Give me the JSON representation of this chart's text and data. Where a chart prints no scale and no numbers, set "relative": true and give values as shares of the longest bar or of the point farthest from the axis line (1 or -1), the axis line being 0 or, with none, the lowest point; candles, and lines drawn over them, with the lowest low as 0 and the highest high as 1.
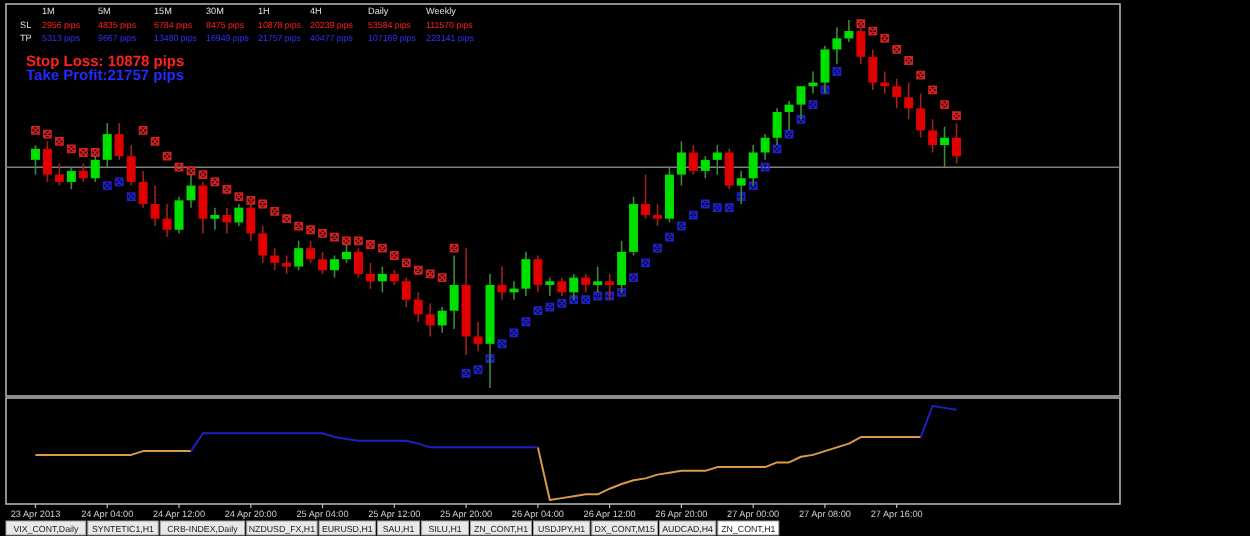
{
  "chart_data": [
    {
      "type": "candlestick",
      "relative": true,
      "tick_labels": false,
      "categories": [
        null,
        null,
        null,
        null,
        null,
        null,
        null,
        null,
        null,
        null,
        null,
        null,
        null,
        null,
        null,
        null,
        null,
        null,
        null,
        null,
        null,
        null,
        null,
        null,
        null,
        null,
        null,
        null,
        null,
        null,
        null,
        null,
        null,
        null,
        null,
        null,
        null,
        null,
        null,
        null,
        null,
        null,
        null,
        null,
        null,
        null,
        null,
        null,
        null,
        null,
        null,
        null,
        null,
        null,
        null,
        null,
        null,
        null,
        null,
        null,
        null,
        null,
        null,
        null,
        null,
        null,
        null,
        null,
        null,
        null,
        null,
        null,
        null,
        null,
        null,
        null,
        null,
        null
      ],
      "ohlc": [
        [
          0.62,
          0.66,
          0.58,
          0.65
        ],
        [
          0.65,
          0.67,
          0.56,
          0.58
        ],
        [
          0.58,
          0.61,
          0.55,
          0.56
        ],
        [
          0.56,
          0.6,
          0.54,
          0.59
        ],
        [
          0.59,
          0.61,
          0.56,
          0.57
        ],
        [
          0.57,
          0.63,
          0.56,
          0.62
        ],
        [
          0.62,
          0.72,
          0.6,
          0.69
        ],
        [
          0.69,
          0.72,
          0.62,
          0.63
        ],
        [
          0.63,
          0.66,
          0.55,
          0.56
        ],
        [
          0.56,
          0.59,
          0.49,
          0.5
        ],
        [
          0.5,
          0.55,
          0.44,
          0.46
        ],
        [
          0.46,
          0.5,
          0.41,
          0.43
        ],
        [
          0.43,
          0.52,
          0.42,
          0.51
        ],
        [
          0.51,
          0.58,
          0.49,
          0.55
        ],
        [
          0.55,
          0.56,
          0.42,
          0.46
        ],
        [
          0.46,
          0.49,
          0.43,
          0.47
        ],
        [
          0.47,
          0.49,
          0.42,
          0.45
        ],
        [
          0.45,
          0.5,
          0.44,
          0.49
        ],
        [
          0.49,
          0.5,
          0.4,
          0.42
        ],
        [
          0.42,
          0.44,
          0.34,
          0.36
        ],
        [
          0.36,
          0.38,
          0.32,
          0.34
        ],
        [
          0.34,
          0.36,
          0.31,
          0.33
        ],
        [
          0.33,
          0.4,
          0.32,
          0.38
        ],
        [
          0.38,
          0.4,
          0.34,
          0.35
        ],
        [
          0.35,
          0.37,
          0.31,
          0.32
        ],
        [
          0.32,
          0.36,
          0.3,
          0.35
        ],
        [
          0.35,
          0.39,
          0.34,
          0.37
        ],
        [
          0.37,
          0.38,
          0.3,
          0.31
        ],
        [
          0.31,
          0.34,
          0.27,
          0.29
        ],
        [
          0.29,
          0.33,
          0.26,
          0.31
        ],
        [
          0.31,
          0.32,
          0.28,
          0.29
        ],
        [
          0.29,
          0.3,
          0.22,
          0.24
        ],
        [
          0.24,
          0.26,
          0.18,
          0.2
        ],
        [
          0.2,
          0.23,
          0.14,
          0.17
        ],
        [
          0.17,
          0.22,
          0.15,
          0.21
        ],
        [
          0.21,
          0.36,
          0.16,
          0.28
        ],
        [
          0.28,
          0.38,
          0.09,
          0.14
        ],
        [
          0.14,
          0.18,
          0.1,
          0.12
        ],
        [
          0.12,
          0.31,
          0.0,
          0.28
        ],
        [
          0.28,
          0.33,
          0.24,
          0.26
        ],
        [
          0.26,
          0.29,
          0.24,
          0.27
        ],
        [
          0.27,
          0.37,
          0.25,
          0.35
        ],
        [
          0.35,
          0.36,
          0.26,
          0.28
        ],
        [
          0.28,
          0.3,
          0.25,
          0.29
        ],
        [
          0.29,
          0.3,
          0.25,
          0.26
        ],
        [
          0.26,
          0.31,
          0.24,
          0.3
        ],
        [
          0.3,
          0.31,
          0.26,
          0.28
        ],
        [
          0.28,
          0.33,
          0.26,
          0.29
        ],
        [
          0.29,
          0.31,
          0.24,
          0.28
        ],
        [
          0.28,
          0.4,
          0.26,
          0.37
        ],
        [
          0.37,
          0.52,
          0.36,
          0.5
        ],
        [
          0.5,
          0.58,
          0.46,
          0.47
        ],
        [
          0.47,
          0.5,
          0.44,
          0.46
        ],
        [
          0.46,
          0.6,
          0.45,
          0.58
        ],
        [
          0.58,
          0.67,
          0.55,
          0.64
        ],
        [
          0.64,
          0.66,
          0.58,
          0.59
        ],
        [
          0.59,
          0.63,
          0.57,
          0.62
        ],
        [
          0.62,
          0.66,
          0.58,
          0.64
        ],
        [
          0.64,
          0.65,
          0.54,
          0.55
        ],
        [
          0.55,
          0.59,
          0.5,
          0.57
        ],
        [
          0.57,
          0.66,
          0.55,
          0.64
        ],
        [
          0.64,
          0.69,
          0.62,
          0.68
        ],
        [
          0.68,
          0.76,
          0.66,
          0.75
        ],
        [
          0.75,
          0.78,
          0.7,
          0.77
        ],
        [
          0.77,
          0.82,
          0.73,
          0.82
        ],
        [
          0.82,
          0.86,
          0.8,
          0.83
        ],
        [
          0.83,
          0.93,
          0.8,
          0.92
        ],
        [
          0.92,
          0.98,
          0.88,
          0.95
        ],
        [
          0.95,
          1.0,
          0.94,
          0.97
        ],
        [
          0.97,
          0.98,
          0.88,
          0.9
        ],
        [
          0.9,
          0.92,
          0.81,
          0.83
        ],
        [
          0.83,
          0.86,
          0.8,
          0.82
        ],
        [
          0.82,
          0.84,
          0.76,
          0.79
        ],
        [
          0.79,
          0.83,
          0.73,
          0.76
        ],
        [
          0.76,
          0.8,
          0.68,
          0.7
        ],
        [
          0.7,
          0.73,
          0.64,
          0.66
        ],
        [
          0.66,
          0.71,
          0.6,
          0.68
        ],
        [
          0.68,
          0.72,
          0.61,
          0.63
        ]
      ],
      "series": [
        {
          "type": "scatter",
          "marker": "cross",
          "color": "#d42020",
          "values": [
            0.7,
            0.69,
            0.67,
            0.65,
            0.64,
            0.64,
            null,
            null,
            null,
            0.7,
            0.67,
            0.63,
            0.6,
            0.59,
            0.58,
            0.56,
            0.54,
            0.52,
            0.51,
            0.5,
            0.48,
            0.46,
            0.44,
            0.43,
            0.42,
            0.41,
            0.4,
            0.4,
            0.39,
            0.38,
            0.36,
            0.34,
            0.32,
            0.31,
            0.3,
            0.38,
            null,
            null,
            null,
            null,
            null,
            null,
            null,
            null,
            null,
            null,
            null,
            null,
            null,
            null,
            null,
            null,
            null,
            null,
            null,
            null,
            null,
            null,
            null,
            null,
            null,
            null,
            null,
            null,
            null,
            null,
            null,
            null,
            null,
            0.99,
            0.97,
            0.95,
            0.92,
            0.89,
            0.85,
            0.81,
            0.77,
            0.74
          ]
        },
        {
          "type": "scatter",
          "marker": "cross",
          "color": "#2020c8",
          "values": [
            null,
            null,
            null,
            null,
            null,
            null,
            0.55,
            0.56,
            0.52,
            null,
            null,
            null,
            null,
            null,
            null,
            null,
            null,
            null,
            null,
            null,
            null,
            null,
            null,
            null,
            null,
            null,
            null,
            null,
            null,
            null,
            null,
            null,
            null,
            null,
            null,
            null,
            0.04,
            0.05,
            0.08,
            0.12,
            0.15,
            0.18,
            0.21,
            0.22,
            0.23,
            0.24,
            0.24,
            0.25,
            0.25,
            0.26,
            0.3,
            0.34,
            0.38,
            0.41,
            0.44,
            0.47,
            0.5,
            0.49,
            0.49,
            0.52,
            0.55,
            0.6,
            0.65,
            0.69,
            0.73,
            0.77,
            0.81,
            0.86,
            null,
            null,
            null,
            null,
            null,
            null,
            null,
            null,
            null,
            null
          ]
        }
      ],
      "ref_lines": [
        {
          "axis": "y",
          "value": 0.6,
          "color": "#808080"
        }
      ],
      "annotations": [
        "1M",
        "5M",
        "15M",
        "30M",
        "1H",
        "4H",
        "Daily",
        "Weekly",
        "SL",
        "2956 pips",
        "4835 pips",
        "6784 pips",
        "8475 pips",
        "10878 pips",
        "20239 pips",
        "53584 pips",
        "111570 pips",
        "TP",
        "5313 pips",
        "9667 pips",
        "13480 pips",
        "16949 pips",
        "21757 pips",
        "40477 pips",
        "107169 pips",
        "223141 pips",
        "Stop Loss: 10878 pips",
        "Take Profit:21757 pips"
      ]
    },
    {
      "type": "line",
      "relative": true,
      "tick_labels": "x",
      "categories": [
        "23 Apr 2013",
        null,
        null,
        null,
        null,
        null,
        "24 Apr 04:00",
        null,
        null,
        null,
        null,
        null,
        "24 Apr 12:00",
        null,
        null,
        null,
        null,
        null,
        "24 Apr 20:00",
        null,
        null,
        null,
        null,
        null,
        "25 Apr 04:00",
        null,
        null,
        null,
        null,
        null,
        "25 Apr 12:00",
        null,
        null,
        null,
        null,
        null,
        "25 Apr 20:00",
        null,
        null,
        null,
        null,
        null,
        "26 Apr 04:00",
        null,
        null,
        null,
        null,
        null,
        "26 Apr 12:00",
        null,
        null,
        null,
        null,
        null,
        "26 Apr 20:00",
        null,
        null,
        null,
        null,
        null,
        "27 Apr 00:00",
        null,
        null,
        null,
        null,
        null,
        "27 Apr 08:00",
        null,
        null,
        null,
        null,
        null,
        "27 Apr 16:00",
        null,
        null,
        null,
        null,
        null
      ],
      "series": [
        {
          "color": "#d99a4e",
          "values": [
            0.48,
            0.48,
            0.48,
            0.48,
            0.48,
            0.48,
            0.48,
            0.48,
            0.48,
            0.52,
            0.52,
            0.52,
            0.52,
            0.52,
            null,
            null,
            null,
            null,
            null,
            null,
            null,
            null,
            null,
            null,
            null,
            null,
            null,
            null,
            null,
            null,
            null,
            null,
            null,
            null,
            null,
            null,
            null,
            null,
            null,
            null,
            null,
            null,
            0.56,
            0,
            0.02,
            0.04,
            0.06,
            0.06,
            0.12,
            0.17,
            0.21,
            0.23,
            0.27,
            0.29,
            0.31,
            0.31,
            0.31,
            0.35,
            0.35,
            0.35,
            0.35,
            0.35,
            0.4,
            0.4,
            0.46,
            0.48,
            0.52,
            0.56,
            0.6,
            0.67,
            0.67,
            0.67,
            0.67,
            0.67,
            0.67,
            null,
            null,
            null
          ]
        },
        {
          "color": "#2020c0",
          "values": [
            null,
            null,
            null,
            null,
            null,
            null,
            null,
            null,
            null,
            null,
            null,
            null,
            null,
            0.52,
            0.71,
            0.71,
            0.71,
            0.71,
            0.71,
            0.71,
            0.71,
            0.71,
            0.71,
            0.71,
            0.71,
            0.67,
            0.65,
            0.63,
            0.63,
            0.63,
            0.63,
            0.63,
            0.6,
            0.56,
            0.56,
            0.56,
            0.56,
            0.56,
            0.56,
            0.56,
            0.56,
            0.56,
            0.56,
            null,
            null,
            null,
            null,
            null,
            null,
            null,
            null,
            null,
            null,
            null,
            null,
            null,
            null,
            null,
            null,
            null,
            null,
            null,
            null,
            null,
            null,
            null,
            null,
            null,
            null,
            null,
            null,
            null,
            null,
            null,
            0.67,
            1,
            0.98,
            0.96
          ]
        }
      ],
      "annotations": [
        "VIX_CONT,Daily",
        "SYNTETIC1,H1",
        "CRB-INDEX,Daily",
        "NZDUSD_FX,H1",
        "EURUSD,H1",
        "SAU,H1",
        "SILU,H1",
        "ZN_CONT,H1",
        "USDJPY,H1",
        "DX_CONT,M15",
        "AUDCAD,H4",
        "ZN_CONT,H1"
      ]
    }
  ]
}
